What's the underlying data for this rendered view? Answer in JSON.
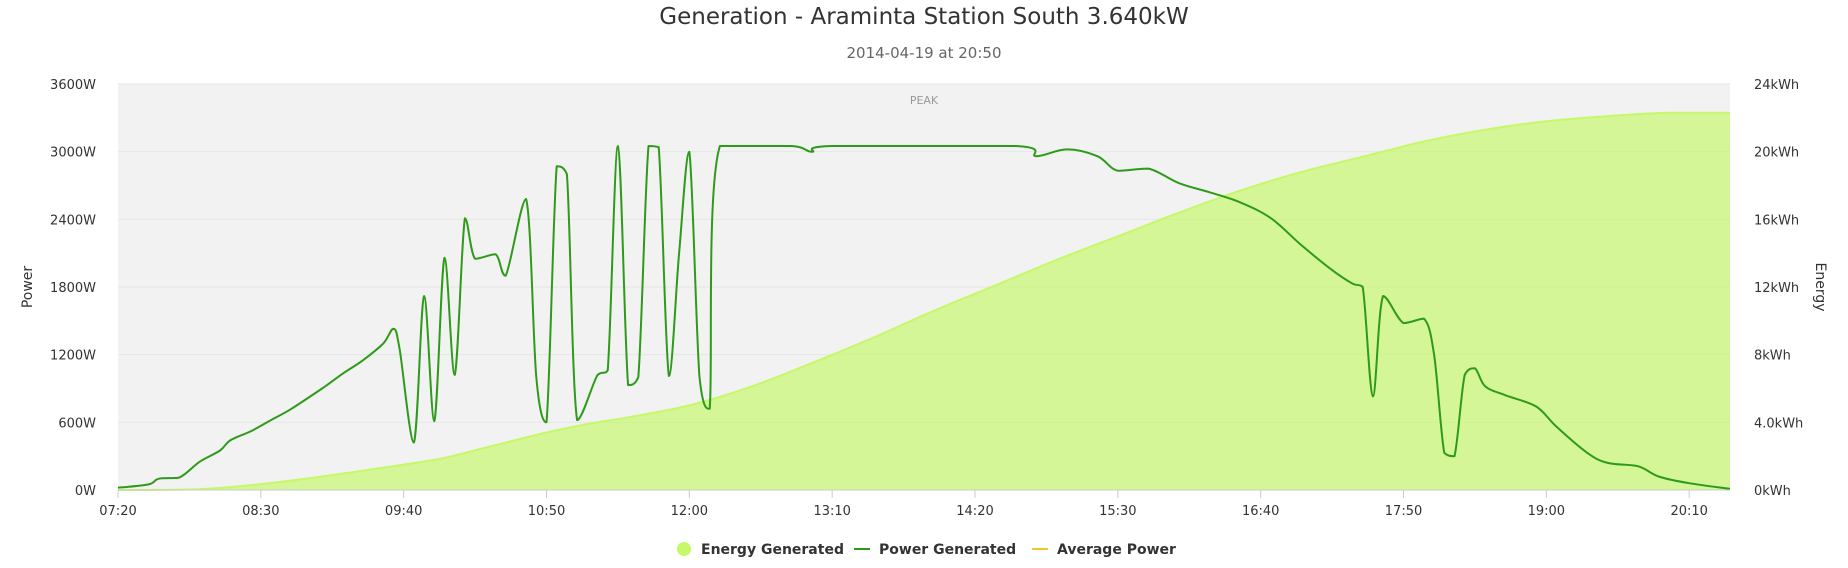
{
  "chart_data": {
    "type": "line",
    "title": "Generation - Araminta Station South 3.640kW",
    "subtitle": "2014-04-19 at 20:50",
    "x_ticks": [
      "07:20",
      "08:30",
      "09:40",
      "10:50",
      "12:00",
      "13:10",
      "14:20",
      "15:30",
      "16:40",
      "17:50",
      "19:00",
      "20:10"
    ],
    "x_range": [
      "07:20",
      "20:30"
    ],
    "y_left": {
      "label": "Power",
      "ticks": [
        "0W",
        "600W",
        "1200W",
        "1800W",
        "2400W",
        "3000W",
        "3600W"
      ],
      "range": [
        0,
        3600
      ]
    },
    "y_right": {
      "label": "Energy",
      "ticks": [
        "0kWh",
        "4.0kWh",
        "8kWh",
        "12kWh",
        "16kWh",
        "20kWh",
        "24kWh"
      ],
      "range": [
        0,
        24
      ]
    },
    "plot_band": {
      "label": "PEAK"
    },
    "grid": true,
    "legend_position": "bottom",
    "series": [
      {
        "name": "Energy Generated",
        "type": "area",
        "axis": "right",
        "color": "#c6f86a",
        "points": [
          [
            "07:20",
            0
          ],
          [
            "08:00",
            0.05
          ],
          [
            "08:30",
            0.35
          ],
          [
            "09:00",
            0.8
          ],
          [
            "09:40",
            1.5
          ],
          [
            "10:00",
            1.9
          ],
          [
            "10:20",
            2.5
          ],
          [
            "10:50",
            3.4
          ],
          [
            "11:10",
            3.9
          ],
          [
            "11:30",
            4.3
          ],
          [
            "12:00",
            5.0
          ],
          [
            "12:30",
            6.1
          ],
          [
            "13:00",
            7.5
          ],
          [
            "13:30",
            9.0
          ],
          [
            "14:00",
            10.6
          ],
          [
            "14:30",
            12.1
          ],
          [
            "15:00",
            13.6
          ],
          [
            "15:30",
            15.0
          ],
          [
            "16:00",
            16.4
          ],
          [
            "16:30",
            17.7
          ],
          [
            "17:00",
            18.8
          ],
          [
            "17:30",
            19.7
          ],
          [
            "18:00",
            20.6
          ],
          [
            "18:30",
            21.3
          ],
          [
            "19:00",
            21.8
          ],
          [
            "19:30",
            22.1
          ],
          [
            "20:00",
            22.3
          ],
          [
            "20:30",
            22.3
          ]
        ]
      },
      {
        "name": "Power Generated",
        "type": "line",
        "axis": "left",
        "color": "#2e9a1a",
        "points": [
          [
            "07:20",
            20
          ],
          [
            "07:35",
            50
          ],
          [
            "07:40",
            100
          ],
          [
            "07:50",
            110
          ],
          [
            "08:00",
            250
          ],
          [
            "08:10",
            350
          ],
          [
            "08:15",
            440
          ],
          [
            "08:25",
            520
          ],
          [
            "08:35",
            620
          ],
          [
            "08:45",
            720
          ],
          [
            "09:00",
            900
          ],
          [
            "09:10",
            1030
          ],
          [
            "09:20",
            1150
          ],
          [
            "09:30",
            1300
          ],
          [
            "09:35",
            1430
          ],
          [
            "09:38",
            1250
          ],
          [
            "09:45",
            420
          ],
          [
            "09:50",
            1720
          ],
          [
            "09:55",
            610
          ],
          [
            "10:00",
            2060
          ],
          [
            "10:05",
            1020
          ],
          [
            "10:10",
            2410
          ],
          [
            "10:15",
            2050
          ],
          [
            "10:25",
            2090
          ],
          [
            "10:30",
            1900
          ],
          [
            "10:40",
            2580
          ],
          [
            "10:45",
            1000
          ],
          [
            "10:50",
            600
          ],
          [
            "10:55",
            2870
          ],
          [
            "11:00",
            2800
          ],
          [
            "11:05",
            620
          ],
          [
            "11:15",
            1020
          ],
          [
            "11:20",
            1060
          ],
          [
            "11:25",
            3050
          ],
          [
            "11:30",
            930
          ],
          [
            "11:35",
            1000
          ],
          [
            "11:40",
            3050
          ],
          [
            "11:45",
            3040
          ],
          [
            "11:50",
            1010
          ],
          [
            "11:55",
            2100
          ],
          [
            "12:00",
            3000
          ],
          [
            "12:05",
            1000
          ],
          [
            "12:10",
            720
          ],
          [
            "12:15",
            3050
          ],
          [
            "12:50",
            3050
          ],
          [
            "13:00",
            3000
          ],
          [
            "13:10",
            3050
          ],
          [
            "14:40",
            3050
          ],
          [
            "14:50",
            2960
          ],
          [
            "15:05",
            3020
          ],
          [
            "15:20",
            2960
          ],
          [
            "15:30",
            2830
          ],
          [
            "15:45",
            2850
          ],
          [
            "16:00",
            2720
          ],
          [
            "16:15",
            2640
          ],
          [
            "16:30",
            2550
          ],
          [
            "16:45",
            2410
          ],
          [
            "17:00",
            2170
          ],
          [
            "17:15",
            1950
          ],
          [
            "17:25",
            1830
          ],
          [
            "17:30",
            1800
          ],
          [
            "17:35",
            830
          ],
          [
            "17:40",
            1720
          ],
          [
            "17:50",
            1480
          ],
          [
            "18:00",
            1520
          ],
          [
            "18:05",
            1200
          ],
          [
            "18:10",
            330
          ],
          [
            "18:15",
            300
          ],
          [
            "18:20",
            1020
          ],
          [
            "18:25",
            1080
          ],
          [
            "18:30",
            920
          ],
          [
            "18:40",
            840
          ],
          [
            "18:55",
            740
          ],
          [
            "19:05",
            560
          ],
          [
            "19:20",
            330
          ],
          [
            "19:30",
            240
          ],
          [
            "19:45",
            210
          ],
          [
            "19:55",
            120
          ],
          [
            "20:10",
            60
          ],
          [
            "20:30",
            10
          ]
        ]
      },
      {
        "name": "Average Power",
        "type": "line",
        "axis": "left",
        "color": "#f7c42a",
        "points": []
      }
    ]
  }
}
